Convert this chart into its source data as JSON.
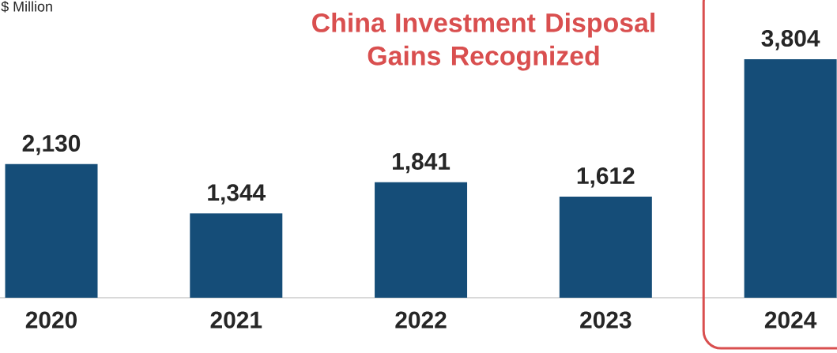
{
  "chart_data": {
    "type": "bar",
    "ylabel": "$ Million",
    "categories": [
      "2020",
      "2021",
      "2022",
      "2023",
      "2024"
    ],
    "values": [
      2130,
      1344,
      1841,
      1612,
      3804
    ],
    "value_labels": [
      "2,130",
      "1,344",
      "1,841",
      "1,612",
      "3,804"
    ],
    "color": "#154d78",
    "annotations": [
      "China Investment Disposal Gains Recognized"
    ]
  }
}
